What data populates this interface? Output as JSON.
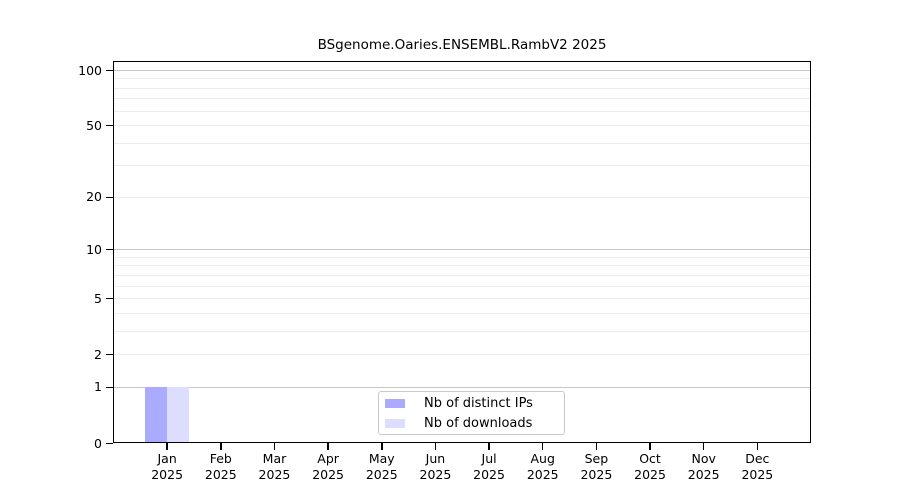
{
  "chart_data": {
    "type": "bar",
    "title": "BSgenome.Oaries.ENSEMBL.RambV2 2025",
    "categories": [
      "Jan 2025",
      "Feb 2025",
      "Mar 2025",
      "Apr 2025",
      "May 2025",
      "Jun 2025",
      "Jul 2025",
      "Aug 2025",
      "Sep 2025",
      "Oct 2025",
      "Nov 2025",
      "Dec 2025"
    ],
    "series": [
      {
        "name": "Nb of distinct IPs",
        "color": "#aaaaff",
        "values": [
          1,
          0,
          0,
          0,
          0,
          0,
          0,
          0,
          0,
          0,
          0,
          0
        ]
      },
      {
        "name": "Nb of downloads",
        "color": "#ddddff",
        "values": [
          1,
          0,
          0,
          0,
          0,
          0,
          0,
          0,
          0,
          0,
          0,
          0
        ]
      }
    ],
    "xlabel": "",
    "ylabel": "",
    "yscale": "log1p",
    "ylim": [
      0,
      112
    ],
    "yticks": [
      0,
      1,
      2,
      5,
      10,
      20,
      50,
      100
    ],
    "gridlines": {
      "major": [
        1,
        10,
        100
      ],
      "minor": [
        2,
        3,
        4,
        5,
        6,
        7,
        8,
        9,
        20,
        30,
        40,
        50,
        60,
        70,
        80,
        90
      ]
    },
    "grid_colors": {
      "major": "#c6c6c6",
      "minor": "#ededed"
    },
    "axis_color": "#000000",
    "background": "#ffffff",
    "legend_position": "bottom-center"
  }
}
